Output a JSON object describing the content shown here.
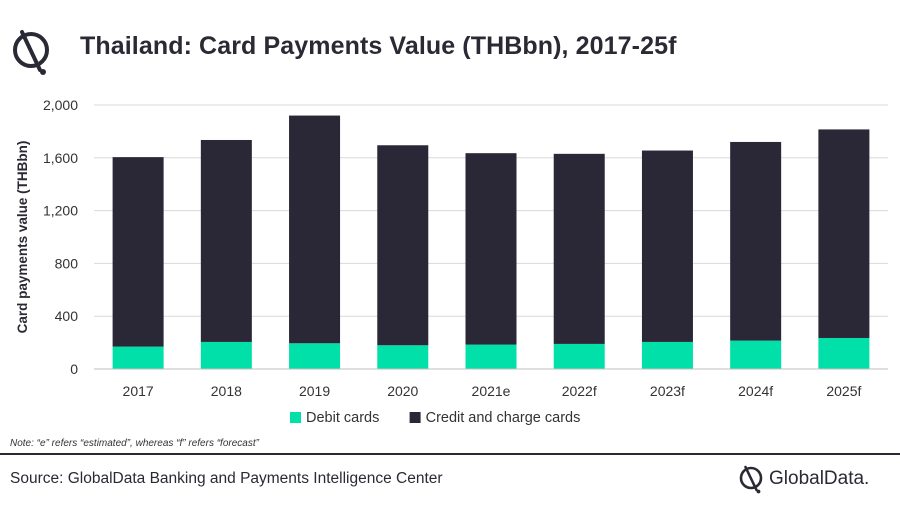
{
  "header": {
    "title": "Thailand: Card Payments Value (THBbn), 2017-25f"
  },
  "chart_data": {
    "type": "bar",
    "stacked": true,
    "categories": [
      "2017",
      "2018",
      "2019",
      "2020",
      "2021e",
      "2022f",
      "2023f",
      "2024f",
      "2025f"
    ],
    "series": [
      {
        "name": "Debit cards",
        "color": "#00e0a8",
        "values": [
          170,
          205,
          195,
          180,
          185,
          190,
          205,
          215,
          235
        ]
      },
      {
        "name": "Credit and charge cards",
        "color": "#2a2736",
        "values": [
          1435,
          1530,
          1725,
          1515,
          1450,
          1440,
          1450,
          1505,
          1580
        ]
      }
    ],
    "ylabel": "Card payments value (THBbn)",
    "ylim": [
      0,
      2000
    ],
    "yticks": [
      0,
      400,
      800,
      1200,
      1600,
      2000
    ],
    "ytick_labels": [
      "0",
      "400",
      "800",
      "1,200",
      "1,600",
      "2,000"
    ],
    "grid": true,
    "legend_position": "bottom"
  },
  "note": "Note: “e” refers “estimated”, whereas “f” refers “forecast”",
  "footer": {
    "source": "Source: GlobalData Banking and Payments Intelligence Center",
    "brand": "GlobalData."
  }
}
